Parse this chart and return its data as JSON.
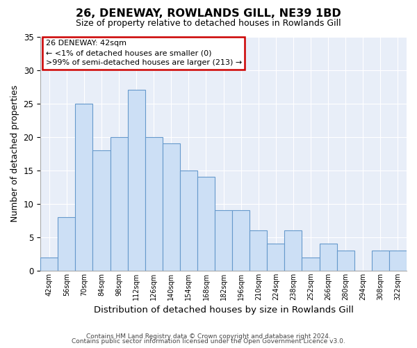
{
  "title": "26, DENEWAY, ROWLANDS GILL, NE39 1BD",
  "subtitle": "Size of property relative to detached houses in Rowlands Gill",
  "xlabel": "Distribution of detached houses by size in Rowlands Gill",
  "ylabel": "Number of detached properties",
  "footer_line1": "Contains HM Land Registry data © Crown copyright and database right 2024.",
  "footer_line2": "Contains public sector information licensed under the Open Government Licence v3.0.",
  "bin_labels": [
    "42sqm",
    "56sqm",
    "70sqm",
    "84sqm",
    "98sqm",
    "112sqm",
    "126sqm",
    "140sqm",
    "154sqm",
    "168sqm",
    "182sqm",
    "196sqm",
    "210sqm",
    "224sqm",
    "238sqm",
    "252sqm",
    "266sqm",
    "280sqm",
    "294sqm",
    "308sqm",
    "322sqm"
  ],
  "bar_heights": [
    2,
    8,
    25,
    18,
    20,
    27,
    20,
    19,
    15,
    14,
    9,
    9,
    6,
    4,
    6,
    2,
    4,
    3,
    0,
    3,
    3
  ],
  "bar_color": "#ccdff5",
  "bar_edge_color": "#6699cc",
  "annotation_title": "26 DENEWAY: 42sqm",
  "annotation_line2": "← <1% of detached houses are smaller (0)",
  "annotation_line3": ">99% of semi-detached houses are larger (213) →",
  "annotation_box_color": "#ffffff",
  "annotation_box_edgecolor": "#cc0000",
  "ylim": [
    0,
    35
  ],
  "yticks": [
    0,
    5,
    10,
    15,
    20,
    25,
    30,
    35
  ],
  "bg_color": "#e8eef8"
}
